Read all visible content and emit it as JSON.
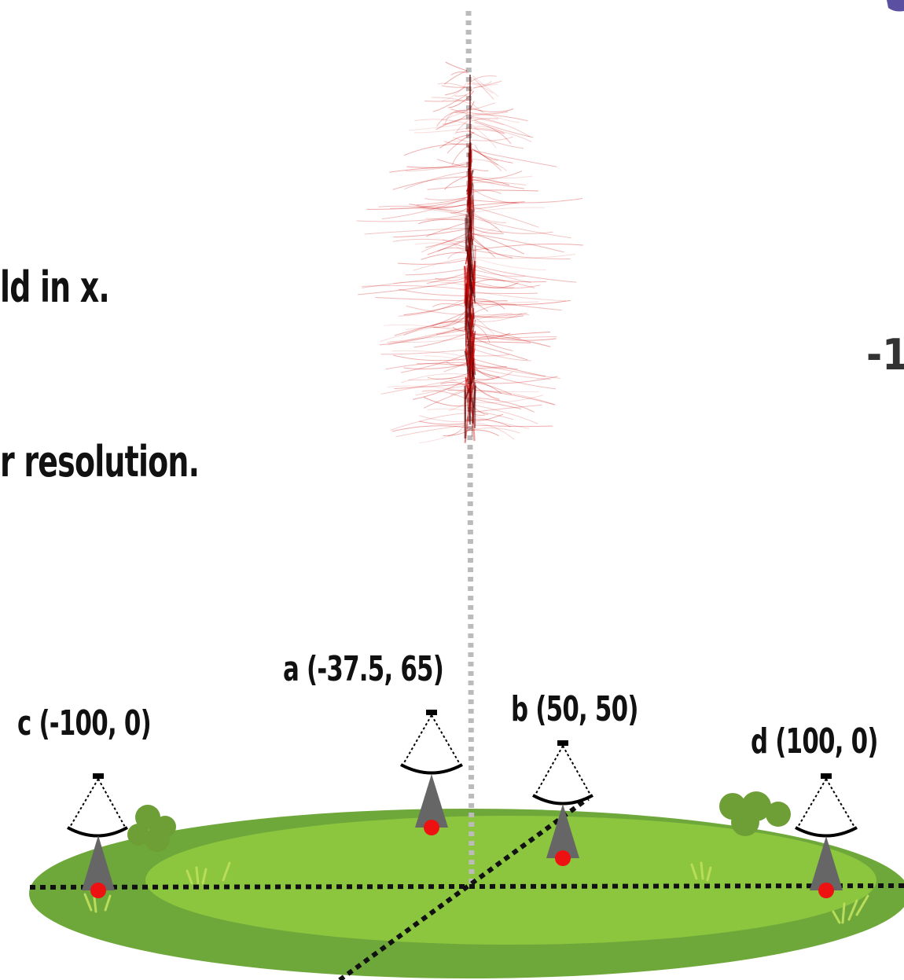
{
  "slide_text": {
    "line1": "ld in x.",
    "line2": "r resolution."
  },
  "side_glyph": "-1",
  "cameras": [
    {
      "id": "a",
      "label": "a (-37.5, 65)"
    },
    {
      "id": "b",
      "label": "b (50, 50)"
    },
    {
      "id": "c",
      "label": "c (-100, 0)"
    },
    {
      "id": "d",
      "label": "d (100, 0)"
    }
  ],
  "colors": {
    "shower": "#cc0000",
    "shower_core": "#5a0000",
    "field_outer": "#6fa83a",
    "field_inner": "#8cc63f",
    "bush": "#6e9f36",
    "camera_body": "#666666",
    "camera_point": "#ee1111",
    "axis_line": "#111111",
    "vertical_axis": "#bbbbbb",
    "corner_blob": "#5a4fa0"
  }
}
